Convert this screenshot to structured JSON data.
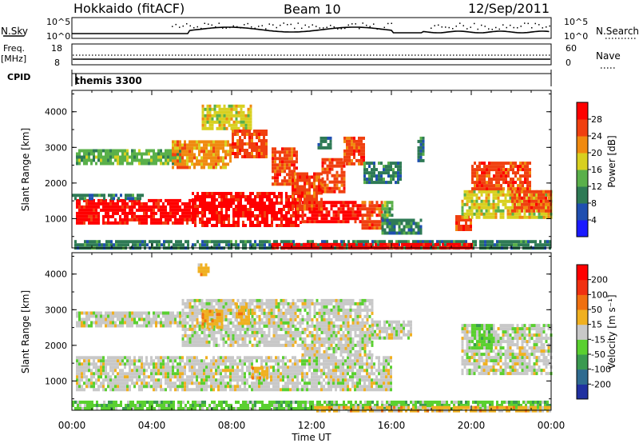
{
  "header": {
    "station": "Hokkaido (fitACF)",
    "beam": "Beam 10",
    "date": "12/Sep/2011"
  },
  "status_panels": {
    "nsky_label": "N.Sky",
    "nsky_ticks": [
      "10^5",
      "10^0"
    ],
    "nsearch_label": "N.Search",
    "nsearch_ticks": [
      "10^5",
      "10^0"
    ],
    "freq_label_1": "Freq.",
    "freq_label_2": "[MHz]",
    "freq_ticks": [
      "18",
      "8"
    ],
    "nave_label": "Nave",
    "nave_ticks": [
      "60",
      "0"
    ],
    "cpid_label": "CPID",
    "cpid_value": "themis 3300"
  },
  "chart_data": [
    {
      "type": "heatmap",
      "title": "",
      "xlabel": "Time UT",
      "ylabel": "Slant Range [km]",
      "x_ticks": [
        "00:00",
        "04:00",
        "08:00",
        "12:00",
        "16:00",
        "20:00",
        "00:00"
      ],
      "xlim_hours": [
        0,
        24
      ],
      "y_ticks": [
        1000,
        2000,
        3000,
        4000
      ],
      "ylim": [
        180,
        4600
      ],
      "colorbar": {
        "label": "Power [dB]",
        "ticks": [
          "4",
          "8",
          "12",
          "16",
          "20",
          "24",
          "28"
        ],
        "colors": [
          "#1a1aff",
          "#1f4fb0",
          "#2e7a55",
          "#5ab04a",
          "#d8d020",
          "#f08a10",
          "#f04010",
          "#ff0000"
        ]
      },
      "regions": [
        {
          "t0": 0.2,
          "t1": 6.0,
          "r0": 900,
          "r1": 1550,
          "level": 7
        },
        {
          "t0": 0.0,
          "t1": 3.5,
          "r0": 1550,
          "r1": 1700,
          "level": 2
        },
        {
          "t0": 6.0,
          "t1": 11.5,
          "r0": 820,
          "r1": 1750,
          "level": 7
        },
        {
          "t0": 11.5,
          "t1": 14.5,
          "r0": 900,
          "r1": 1500,
          "level": 7
        },
        {
          "t0": 14.5,
          "t1": 15.5,
          "r0": 750,
          "r1": 1500,
          "level": 6
        },
        {
          "t0": 15.5,
          "t1": 16.0,
          "r0": 900,
          "r1": 1500,
          "level": 3
        },
        {
          "t0": 0.2,
          "t1": 5.5,
          "r0": 2550,
          "r1": 2950,
          "level": 3
        },
        {
          "t0": 5.0,
          "t1": 8.0,
          "r0": 2400,
          "r1": 3200,
          "level": 5
        },
        {
          "t0": 6.5,
          "t1": 9.0,
          "r0": 3500,
          "r1": 4200,
          "level": 4
        },
        {
          "t0": 8.0,
          "t1": 9.8,
          "r0": 2700,
          "r1": 3500,
          "level": 6
        },
        {
          "t0": 10.0,
          "t1": 11.3,
          "r0": 2000,
          "r1": 3000,
          "level": 6
        },
        {
          "t0": 11.0,
          "t1": 12.5,
          "r0": 1300,
          "r1": 2300,
          "level": 6
        },
        {
          "t0": 12.5,
          "t1": 13.6,
          "r0": 1800,
          "r1": 2700,
          "level": 6
        },
        {
          "t0": 13.6,
          "t1": 14.6,
          "r0": 2500,
          "r1": 3300,
          "level": 6
        },
        {
          "t0": 12.3,
          "t1": 13.0,
          "r0": 3000,
          "r1": 3300,
          "level": 2
        },
        {
          "t0": 14.6,
          "t1": 16.5,
          "r0": 2000,
          "r1": 2600,
          "level": 2
        },
        {
          "t0": 15.5,
          "t1": 17.5,
          "r0": 600,
          "r1": 1000,
          "level": 2
        },
        {
          "t0": 17.3,
          "t1": 17.6,
          "r0": 2600,
          "r1": 3300,
          "level": 2
        },
        {
          "t0": 19.2,
          "t1": 20.0,
          "r0": 700,
          "r1": 1100,
          "level": 6
        },
        {
          "t0": 19.5,
          "t1": 24.0,
          "r0": 1000,
          "r1": 1800,
          "level": 4
        },
        {
          "t0": 20.0,
          "t1": 23.0,
          "r0": 1800,
          "r1": 2600,
          "level": 6
        },
        {
          "t0": 22.0,
          "t1": 24.0,
          "r0": 1200,
          "r1": 1800,
          "level": 6
        },
        {
          "t0": 0.0,
          "t1": 24.0,
          "r0": 200,
          "r1": 400,
          "level": 2
        },
        {
          "t0": 10.0,
          "t1": 20.0,
          "r0": 200,
          "r1": 320,
          "level": 7
        }
      ]
    },
    {
      "type": "heatmap",
      "title": "",
      "xlabel": "Time UT",
      "ylabel": "Slant Range [km]",
      "x_ticks": [
        "00:00",
        "04:00",
        "08:00",
        "12:00",
        "16:00",
        "20:00",
        "00:00"
      ],
      "xlim_hours": [
        0,
        24
      ],
      "y_ticks": [
        1000,
        2000,
        3000,
        4000
      ],
      "ylim": [
        180,
        4600
      ],
      "colorbar": {
        "label": "Velocity [m s⁻¹]",
        "ticks": [
          "200",
          "100",
          "50",
          "15",
          "-15",
          "-50",
          "-100",
          "-200"
        ],
        "colors": [
          "#2030a0",
          "#2f6b90",
          "#3a9a50",
          "#5ad030",
          "#c8c8c8",
          "#f0b020",
          "#f07010",
          "#f03010",
          "#ff0000"
        ]
      },
      "regions": [
        {
          "t0": 0.2,
          "t1": 16.0,
          "r0": 800,
          "r1": 1700,
          "level": 4
        },
        {
          "t0": 0.2,
          "t1": 5.5,
          "r0": 2550,
          "r1": 2950,
          "level": 4
        },
        {
          "t0": 5.5,
          "t1": 11.5,
          "r0": 2000,
          "r1": 3300,
          "level": 4
        },
        {
          "t0": 11.5,
          "t1": 15.0,
          "r0": 1700,
          "r1": 3300,
          "level": 4
        },
        {
          "t0": 15.0,
          "t1": 17.0,
          "r0": 2200,
          "r1": 2700,
          "level": 4
        },
        {
          "t0": 19.5,
          "t1": 24.0,
          "r0": 1200,
          "r1": 2600,
          "level": 4
        },
        {
          "t0": 6.5,
          "t1": 7.5,
          "r0": 2500,
          "r1": 3000,
          "level": 5
        },
        {
          "t0": 9.0,
          "t1": 9.8,
          "r0": 1100,
          "r1": 1400,
          "level": 5
        },
        {
          "t0": 8.2,
          "t1": 8.9,
          "r0": 2600,
          "r1": 3200,
          "level": 5
        },
        {
          "t0": 6.3,
          "t1": 6.8,
          "r0": 4000,
          "r1": 4300,
          "level": 5
        },
        {
          "t0": 20.0,
          "t1": 21.0,
          "r0": 1900,
          "r1": 2600,
          "level": 3
        },
        {
          "t0": 0.0,
          "t1": 24.0,
          "r0": 200,
          "r1": 450,
          "level": 3
        },
        {
          "t0": 12.0,
          "t1": 24.0,
          "r0": 200,
          "r1": 300,
          "level": 5
        }
      ]
    }
  ]
}
